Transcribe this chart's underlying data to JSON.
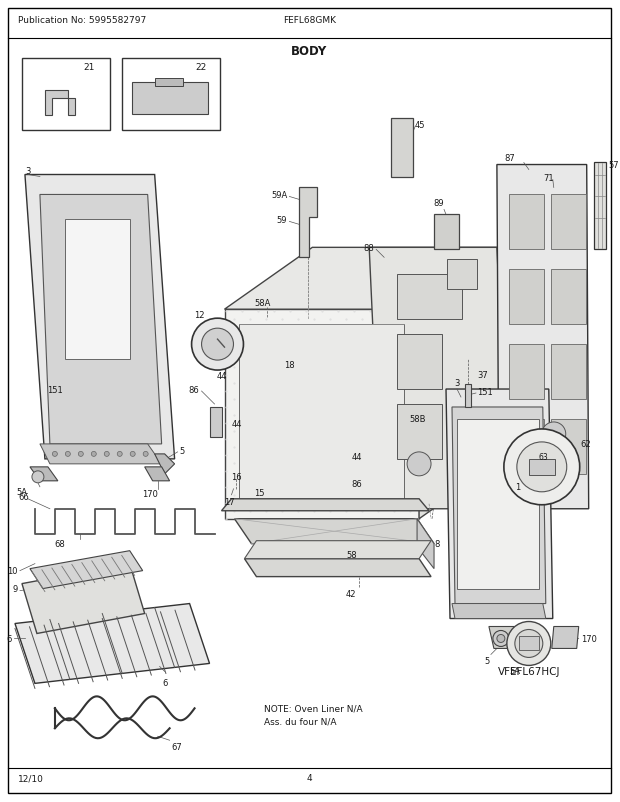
{
  "title": "BODY",
  "header_left": "Publication No: 5995582797",
  "header_center": "FEFL68GMK",
  "footer_left": "12/10",
  "footer_center": "4",
  "model_ref": "VFEFL67HCJ",
  "note_line1": "NOTE: Oven Liner N/A",
  "note_line2": "Ass. du four N/A",
  "bg_color": "#ffffff",
  "border_color": "#000000",
  "text_color": "#1a1a1a",
  "fig_width": 6.2,
  "fig_height": 8.03,
  "dpi": 100
}
